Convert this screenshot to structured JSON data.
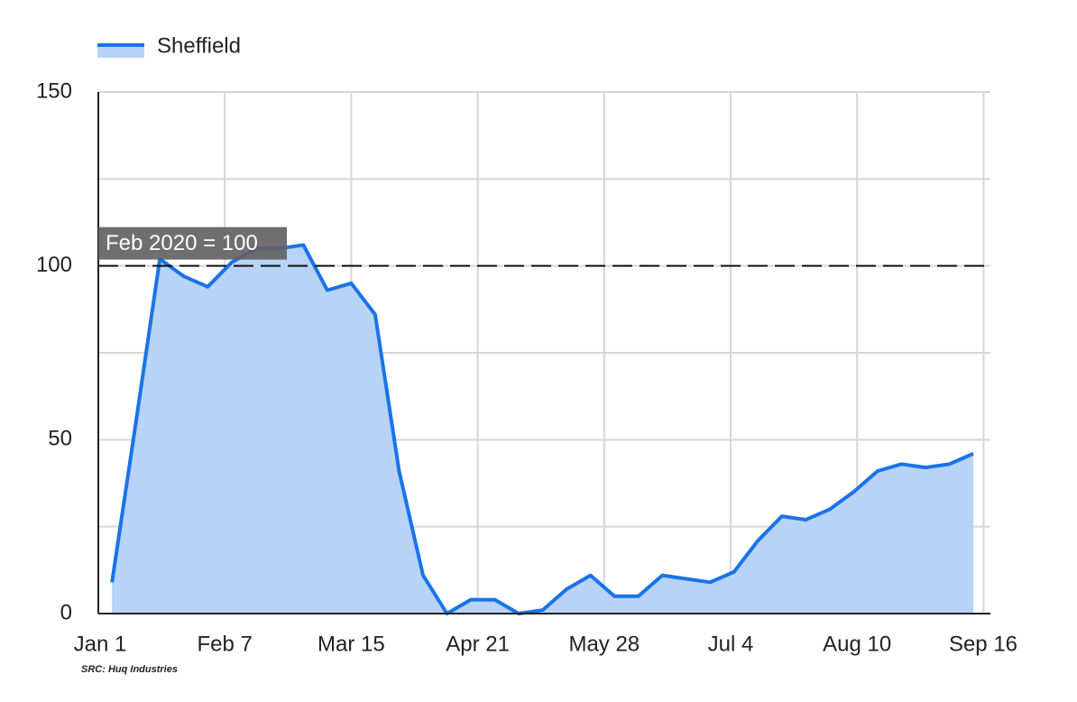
{
  "chart_data": {
    "type": "area",
    "title_legend_position": "top-left",
    "x": [
      4,
      11,
      18,
      25,
      32,
      39,
      46,
      53,
      60,
      67,
      74,
      81,
      88,
      95,
      102,
      109,
      116,
      123,
      130,
      137,
      144,
      151,
      158,
      165,
      172,
      179,
      186,
      193,
      200,
      207,
      214,
      221,
      228,
      235,
      242,
      249,
      256
    ],
    "series": [
      {
        "name": "Sheffield",
        "color": "#1a73e8",
        "fill": "#b7d3f5",
        "values": [
          9,
          55,
          102,
          97,
          94,
          101,
          105,
          105,
          106,
          93,
          95,
          86,
          41,
          11,
          0,
          4,
          4,
          0,
          1,
          7,
          11,
          5,
          5,
          11,
          10,
          9,
          12,
          21,
          28,
          27,
          30,
          35,
          41,
          43,
          42,
          43,
          46
        ]
      }
    ],
    "xlim": [
      0,
      261
    ],
    "xticks": [
      {
        "value": 0,
        "label": "Jan 1"
      },
      {
        "value": 37,
        "label": "Feb 7"
      },
      {
        "value": 74,
        "label": "Mar 15"
      },
      {
        "value": 111,
        "label": "Apr 21"
      },
      {
        "value": 148,
        "label": "May 28"
      },
      {
        "value": 185,
        "label": "Jul 4"
      },
      {
        "value": 222,
        "label": "Aug 10"
      },
      {
        "value": 259,
        "label": "Sep 16"
      }
    ],
    "ylim": [
      0,
      150
    ],
    "yticks": [
      0,
      50,
      100,
      150
    ],
    "minor_yticks": [
      25,
      75,
      125
    ],
    "grid": true,
    "reference_line": {
      "value": 100,
      "label": "Feb 2020 = 100"
    },
    "source": "SRC: Huq Industries"
  }
}
